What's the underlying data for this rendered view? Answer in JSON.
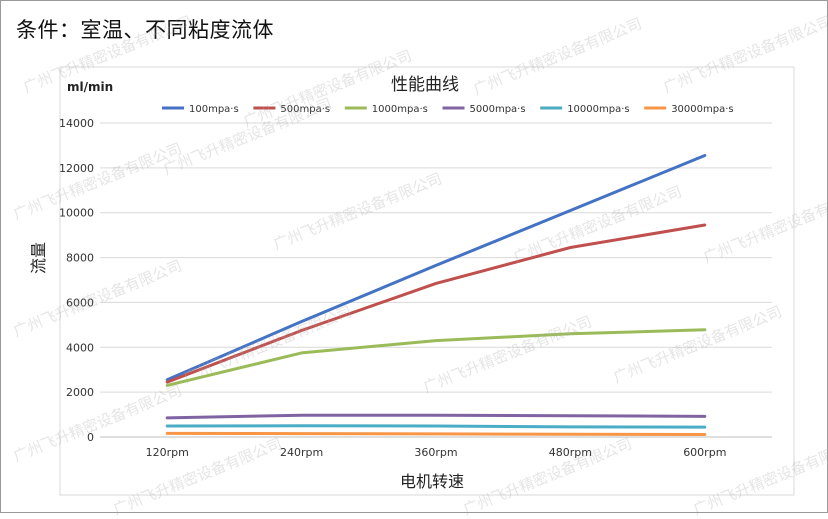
{
  "heading": "条件：室温、不同粘度流体",
  "watermark_text": "广州飞升精密设备有限公司",
  "chart_data": {
    "type": "line",
    "title": "性能曲线",
    "xlabel": "电机转速",
    "ylabel": "流量",
    "yunit": "ml/min",
    "categories": [
      "120rpm",
      "240rpm",
      "360rpm",
      "480rpm",
      "600rpm"
    ],
    "ylim": [
      0,
      14000
    ],
    "yticks": [
      0,
      2000,
      4000,
      6000,
      8000,
      10000,
      12000,
      14000
    ],
    "grid": true,
    "legend_position": "top",
    "series": [
      {
        "name": "100mpa·s",
        "color": "#4472C4",
        "values": [
          2550,
          5150,
          7650,
          10100,
          12550
        ]
      },
      {
        "name": "500mpa·s",
        "color": "#C0504D",
        "values": [
          2450,
          4750,
          6850,
          8450,
          9450
        ]
      },
      {
        "name": "1000mpa·s",
        "color": "#9BBB59",
        "values": [
          2300,
          3750,
          4300,
          4600,
          4780
        ]
      },
      {
        "name": "5000mpa·s",
        "color": "#8064A2",
        "values": [
          850,
          970,
          970,
          950,
          920
        ]
      },
      {
        "name": "10000mpa·s",
        "color": "#4BACC6",
        "values": [
          490,
          500,
          490,
          450,
          440
        ]
      },
      {
        "name": "30000mpa·s",
        "color": "#F79646",
        "values": [
          160,
          150,
          140,
          120,
          110
        ]
      }
    ]
  }
}
